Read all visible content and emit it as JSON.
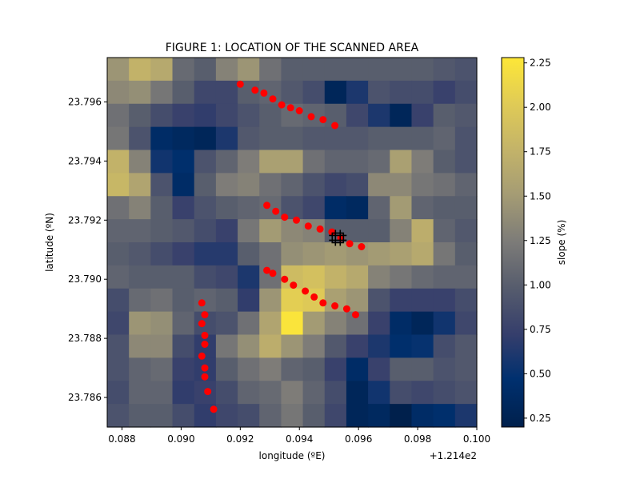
{
  "chart_data": {
    "type": "heatmap",
    "title": "FIGURE 1: LOCATION OF THE SCANNED AREA",
    "xlabel": "longitude (ºE)",
    "ylabel": "latitude (ºN)",
    "x_offset_label": "+1.214e2",
    "colorbar_label": "slope (%)",
    "colormap": "cividis",
    "clim": [
      0.2,
      2.28
    ],
    "x_range": [
      0.0875,
      0.1
    ],
    "y_range": [
      23.785,
      23.7975
    ],
    "x_ticks": [
      0.088,
      0.09,
      0.092,
      0.094,
      0.096,
      0.098,
      0.1
    ],
    "x_tick_labels": [
      "0.088",
      "0.090",
      "0.092",
      "0.094",
      "0.096",
      "0.098",
      "0.100"
    ],
    "y_ticks": [
      23.786,
      23.788,
      23.79,
      23.792,
      23.794,
      23.796
    ],
    "y_tick_labels": [
      "23.786",
      "23.788",
      "23.790",
      "23.792",
      "23.794",
      "23.796"
    ],
    "colorbar_ticks": [
      0.25,
      0.5,
      0.75,
      1.0,
      1.25,
      1.5,
      1.75,
      2.0,
      2.25
    ],
    "colorbar_tick_labels": [
      "0.25",
      "0.50",
      "0.75",
      "1.00",
      "1.25",
      "1.50",
      "1.75",
      "2.00",
      "2.25"
    ],
    "grid_rows": 16,
    "grid_cols": 17,
    "grid_values": [
      [
        1.45,
        1.75,
        1.65,
        1.1,
        1.0,
        1.3,
        1.45,
        1.15,
        1.0,
        1.0,
        1.0,
        1.0,
        1.0,
        1.0,
        1.0,
        0.95,
        0.9
      ],
      [
        1.35,
        1.4,
        1.2,
        1.0,
        0.8,
        0.8,
        1.0,
        1.05,
        0.95,
        0.85,
        0.3,
        0.6,
        0.9,
        0.85,
        0.85,
        0.75,
        0.85
      ],
      [
        1.15,
        1.0,
        0.85,
        0.75,
        0.7,
        0.8,
        0.9,
        1.0,
        1.1,
        1.05,
        1.0,
        0.8,
        0.6,
        0.3,
        0.75,
        1.0,
        0.95
      ],
      [
        1.2,
        0.9,
        0.4,
        0.35,
        0.3,
        0.6,
        0.95,
        1.0,
        1.0,
        0.95,
        0.95,
        0.95,
        1.0,
        1.0,
        1.0,
        1.05,
        0.9
      ],
      [
        1.75,
        1.3,
        0.55,
        0.45,
        0.9,
        1.05,
        1.25,
        1.55,
        1.55,
        1.15,
        1.05,
        1.05,
        1.1,
        1.55,
        1.25,
        1.0,
        0.9
      ],
      [
        1.8,
        1.6,
        0.9,
        0.4,
        1.0,
        1.25,
        1.3,
        1.15,
        1.05,
        0.9,
        0.8,
        0.85,
        1.35,
        1.35,
        1.2,
        1.15,
        1.05
      ],
      [
        1.15,
        1.3,
        1.0,
        0.75,
        0.9,
        1.0,
        1.05,
        1.1,
        0.9,
        0.8,
        0.4,
        0.35,
        1.05,
        1.5,
        1.05,
        1.0,
        1.0
      ],
      [
        1.05,
        1.05,
        1.0,
        0.95,
        0.85,
        0.75,
        1.2,
        1.5,
        1.35,
        1.3,
        1.0,
        1.0,
        1.0,
        1.3,
        1.7,
        1.05,
        0.95
      ],
      [
        1.0,
        0.95,
        0.85,
        0.75,
        0.65,
        0.65,
        1.0,
        1.15,
        1.4,
        1.45,
        1.5,
        1.45,
        1.5,
        1.55,
        1.65,
        1.2,
        1.0
      ],
      [
        1.05,
        1.0,
        1.0,
        1.0,
        0.85,
        0.8,
        0.6,
        1.15,
        1.85,
        1.9,
        1.75,
        1.65,
        1.3,
        1.2,
        1.1,
        1.05,
        1.05
      ],
      [
        0.85,
        1.1,
        1.15,
        1.0,
        1.05,
        1.0,
        0.7,
        1.45,
        2.05,
        2.0,
        1.55,
        1.45,
        0.9,
        0.75,
        0.75,
        0.75,
        0.85
      ],
      [
        0.8,
        1.45,
        1.4,
        1.05,
        0.85,
        0.9,
        1.15,
        1.6,
        2.25,
        1.5,
        1.3,
        1.15,
        0.75,
        0.4,
        0.3,
        0.55,
        0.8
      ],
      [
        0.9,
        1.35,
        1.35,
        0.85,
        0.7,
        1.2,
        1.4,
        1.7,
        1.45,
        1.25,
        0.95,
        0.75,
        0.6,
        0.45,
        0.5,
        0.85,
        0.95
      ],
      [
        0.9,
        1.05,
        1.1,
        0.75,
        0.7,
        1.0,
        1.15,
        1.25,
        1.05,
        1.0,
        0.75,
        0.4,
        0.75,
        1.0,
        1.0,
        0.9,
        0.95
      ],
      [
        0.85,
        1.05,
        1.05,
        0.7,
        0.75,
        0.85,
        1.05,
        1.1,
        1.25,
        1.05,
        0.85,
        0.3,
        0.55,
        0.85,
        0.8,
        0.85,
        0.9
      ],
      [
        0.9,
        1.0,
        1.0,
        0.85,
        0.7,
        0.8,
        0.85,
        1.05,
        1.2,
        1.0,
        0.8,
        0.3,
        0.35,
        0.2,
        0.4,
        0.45,
        0.6
      ]
    ],
    "scan_path": {
      "marker": "circle",
      "color": "#ff0000",
      "segments": [
        {
          "x": [
            0.092,
            0.0925,
            0.0928,
            0.0931,
            0.0934,
            0.0937,
            0.094,
            0.0944,
            0.0948,
            0.0952
          ],
          "y": [
            23.7966,
            23.7964,
            23.7963,
            23.7961,
            23.7959,
            23.7958,
            23.7957,
            23.7955,
            23.7954,
            23.7952
          ]
        },
        {
          "x": [
            0.0929,
            0.0932,
            0.0935,
            0.0939,
            0.0943,
            0.0947,
            0.0951,
            0.0954,
            0.0957,
            0.0961
          ],
          "y": [
            23.7925,
            23.7923,
            23.7921,
            23.792,
            23.7918,
            23.7917,
            23.7916,
            23.7914,
            23.7912,
            23.7911
          ]
        },
        {
          "x": [
            0.0929,
            0.0931,
            0.0935,
            0.0938,
            0.0942,
            0.0945,
            0.0948,
            0.0952,
            0.0956,
            0.0959
          ],
          "y": [
            23.7903,
            23.7902,
            23.79,
            23.7898,
            23.7896,
            23.7894,
            23.7892,
            23.7891,
            23.789,
            23.7888
          ]
        },
        {
          "x": [
            0.0907,
            0.0908,
            0.0907,
            0.0908,
            0.0908,
            0.0907,
            0.0908,
            0.0908,
            0.0909,
            0.0911
          ],
          "y": [
            23.7892,
            23.7888,
            23.7885,
            23.7881,
            23.7878,
            23.7874,
            23.787,
            23.7867,
            23.7862,
            23.7856
          ]
        }
      ]
    },
    "target_marker": {
      "x": 0.0953,
      "y": 23.7914,
      "marker": "crosshair-box",
      "color": "#000000"
    }
  }
}
